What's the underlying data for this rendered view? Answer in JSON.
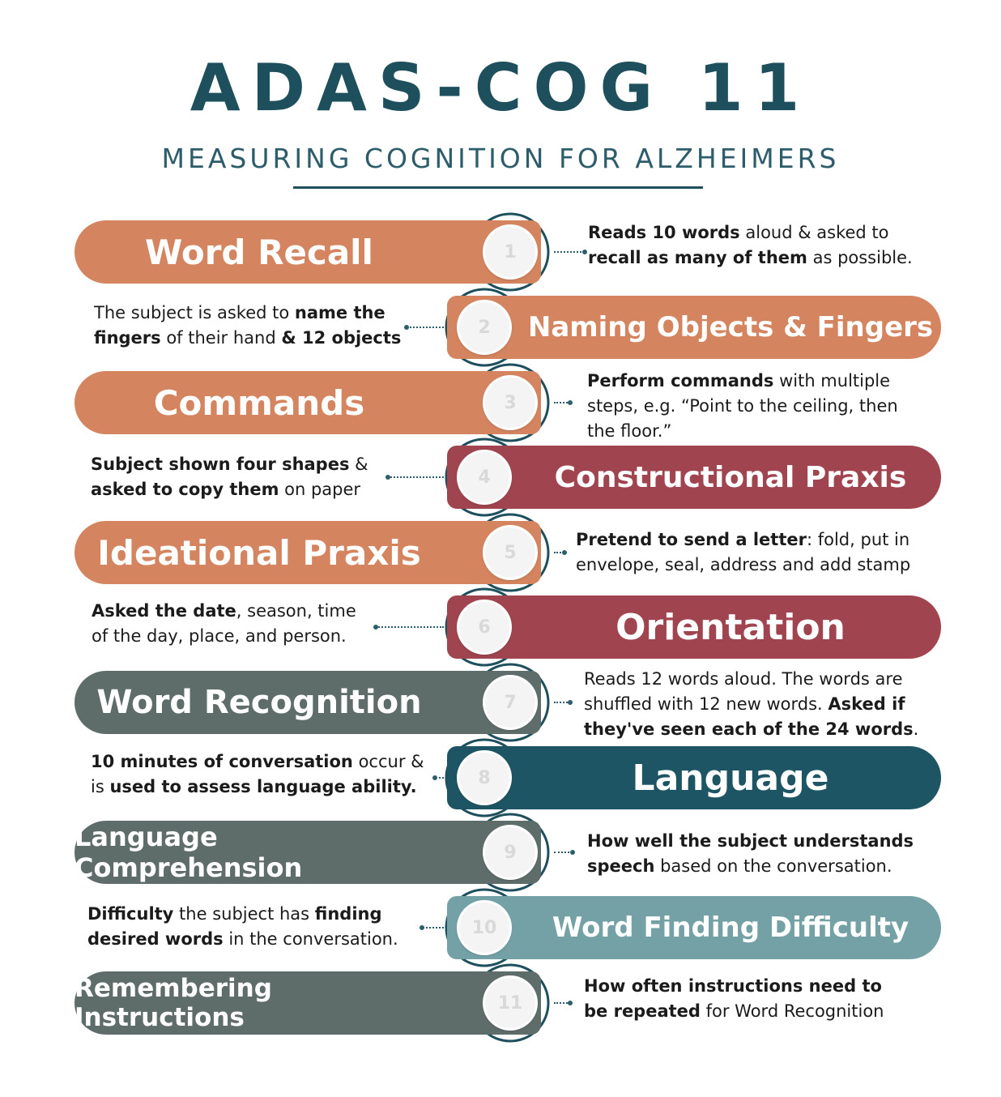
{
  "header": {
    "title": "ADAS-COG 11",
    "subtitle": "MEASURING COGNITION FOR ALZHEIMERS"
  },
  "colors": {
    "orange": "#d4845e",
    "red": "#a0454f",
    "gray": "#5f6d6a",
    "teal_dark": "#1e5564",
    "teal_light": "#73a1a6",
    "title": "#1e4f5c"
  },
  "items": [
    {
      "num": "1",
      "label": "Word Recall",
      "color": "orange",
      "desc": [
        [
          "b",
          "Reads 10 words"
        ],
        [
          "t",
          " aloud & asked to "
        ],
        [
          "br"
        ],
        [
          "b",
          "recall as many of them"
        ],
        [
          "t",
          " as possible."
        ]
      ]
    },
    {
      "num": "2",
      "label": "Naming Objects & Fingers",
      "color": "orange",
      "desc": [
        [
          "t",
          "The subject is asked to "
        ],
        [
          "b",
          "name the"
        ],
        [
          "br"
        ],
        [
          "b",
          "fingers"
        ],
        [
          "t",
          " of their hand "
        ],
        [
          "b",
          "& 12 objects"
        ]
      ]
    },
    {
      "num": "3",
      "label": "Commands",
      "color": "orange",
      "desc": [
        [
          "b",
          "Perform commands"
        ],
        [
          "t",
          " with multiple"
        ],
        [
          "br"
        ],
        [
          "t",
          "steps, e.g. “Point to the ceiling, then"
        ],
        [
          "br"
        ],
        [
          "t",
          "the floor.”"
        ]
      ]
    },
    {
      "num": "4",
      "label": "Constructional Praxis",
      "color": "red",
      "desc": [
        [
          "b",
          "Subject shown four shapes"
        ],
        [
          "t",
          " &"
        ],
        [
          "br"
        ],
        [
          "b",
          "asked to copy them"
        ],
        [
          "t",
          " on paper"
        ]
      ]
    },
    {
      "num": "5",
      "label": "Ideational Praxis",
      "color": "orange",
      "desc": [
        [
          "b",
          "Pretend to send a letter"
        ],
        [
          "t",
          ": fold, put in"
        ],
        [
          "br"
        ],
        [
          "t",
          "envelope, seal, address and add stamp"
        ]
      ]
    },
    {
      "num": "6",
      "label": "Orientation",
      "color": "red",
      "desc": [
        [
          "b",
          "Asked the date"
        ],
        [
          "t",
          ", season, time"
        ],
        [
          "br"
        ],
        [
          "t",
          "of the day, place, and person."
        ]
      ]
    },
    {
      "num": "7",
      "label": "Word Recognition",
      "color": "gray",
      "desc": [
        [
          "t",
          "Reads 12 words aloud. The words are"
        ],
        [
          "br"
        ],
        [
          "t",
          "shuffled with 12 new words. "
        ],
        [
          "b",
          "Asked if"
        ],
        [
          "br"
        ],
        [
          "b",
          "they've seen each of the 24 words"
        ],
        [
          "t",
          "."
        ]
      ]
    },
    {
      "num": "8",
      "label": "Language",
      "color": "teal_dark",
      "desc": [
        [
          "b",
          "10 minutes of conversation"
        ],
        [
          "t",
          " occur &"
        ],
        [
          "br"
        ],
        [
          "t",
          "is "
        ],
        [
          "b",
          "used to assess language ability."
        ]
      ]
    },
    {
      "num": "9",
      "label": "Language Comprehension",
      "color": "gray",
      "desc": [
        [
          "b",
          "How well the subject understands"
        ],
        [
          "br"
        ],
        [
          "b",
          "speech"
        ],
        [
          "t",
          " based on the conversation."
        ]
      ]
    },
    {
      "num": "10",
      "label": "Word Finding Difficulty",
      "color": "teal_light",
      "desc": [
        [
          "b",
          "Difficulty"
        ],
        [
          "t",
          " the subject has "
        ],
        [
          "b",
          "finding"
        ],
        [
          "br"
        ],
        [
          "b",
          "desired words"
        ],
        [
          "t",
          " in the conversation."
        ]
      ]
    },
    {
      "num": "11",
      "label": "Remembering Instructions",
      "color": "gray",
      "desc": [
        [
          "b",
          "How often instructions need to"
        ],
        [
          "br"
        ],
        [
          "b",
          "be repeated"
        ],
        [
          "t",
          " for Word Recognition"
        ]
      ]
    }
  ]
}
